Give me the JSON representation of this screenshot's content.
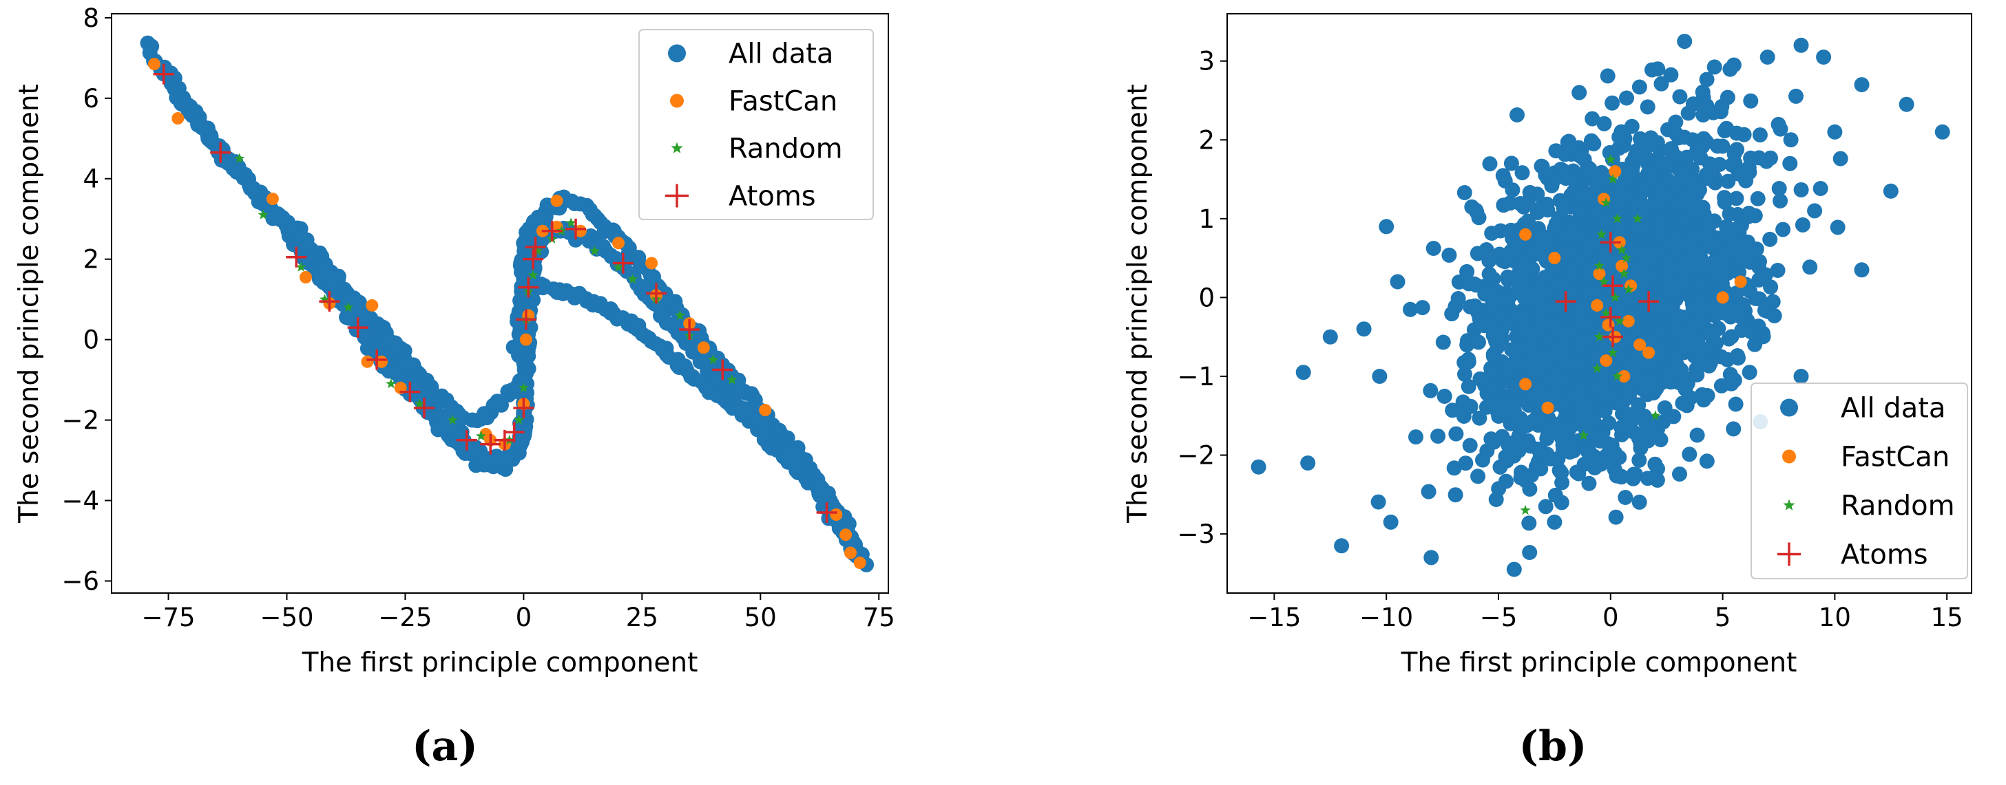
{
  "chart_data": [
    {
      "type": "scatter",
      "panel_label": "(a)",
      "xlabel": "The first principle component",
      "ylabel": "The second principle component",
      "xlim": [
        -87,
        77
      ],
      "ylim": [
        -6.3,
        8.1
      ],
      "xticks": [
        -75,
        -50,
        -25,
        0,
        25,
        50,
        75
      ],
      "yticks": [
        -6,
        -4,
        -2,
        0,
        2,
        4,
        6,
        8
      ],
      "xtick_labels": [
        "−75",
        "−50",
        "−25",
        "0",
        "25",
        "50",
        "75"
      ],
      "ytick_labels": [
        "−6",
        "−4",
        "−2",
        "0",
        "2",
        "4",
        "6",
        "8"
      ],
      "legend_position": "top-right",
      "series": [
        {
          "name": "All data",
          "marker": "circle",
          "color": "#1f77b4",
          "curves": [
            [
              [
                -80,
                7.35
              ],
              [
                -72,
                6.0
              ],
              [
                -62,
                4.35
              ],
              [
                -52,
                3.0
              ],
              [
                -42,
                1.4
              ],
              [
                -32,
                -0.2
              ],
              [
                -22,
                -1.55
              ],
              [
                -14,
                -2.6
              ],
              [
                -8,
                -3.1
              ],
              [
                -4,
                -3.2
              ],
              [
                -1,
                -2.8
              ],
              [
                0,
                -1.8
              ],
              [
                0.5,
                -0.5
              ],
              [
                1,
                1.0
              ],
              [
                2.5,
                2.5
              ],
              [
                5,
                3.35
              ],
              [
                10,
                3.5
              ],
              [
                15,
                3.1
              ],
              [
                22,
                2.3
              ],
              [
                30,
                1.1
              ],
              [
                40,
                -0.4
              ],
              [
                50,
                -1.7
              ],
              [
                60,
                -3.2
              ],
              [
                67,
                -4.5
              ],
              [
                72,
                -5.6
              ]
            ],
            [
              [
                -74,
                6.3
              ],
              [
                -65,
                4.8
              ],
              [
                -55,
                3.5
              ],
              [
                -45,
                2.2
              ],
              [
                -35,
                0.7
              ],
              [
                -25,
                -0.8
              ],
              [
                -15,
                -2.2
              ],
              [
                -9,
                -2.9
              ],
              [
                -4,
                -3.0
              ],
              [
                -1,
                -2.6
              ],
              [
                0.3,
                -1.5
              ],
              [
                1,
                0.2
              ],
              [
                2,
                1.7
              ],
              [
                4,
                2.6
              ],
              [
                8,
                2.75
              ],
              [
                14,
                2.5
              ],
              [
                22,
                1.7
              ],
              [
                32,
                0.2
              ],
              [
                42,
                -1.1
              ],
              [
                52,
                -2.6
              ],
              [
                62,
                -3.7
              ],
              [
                70,
                -5.3
              ]
            ],
            [
              [
                -48,
                2.8
              ],
              [
                -40,
                1.6
              ],
              [
                -32,
                0.5
              ],
              [
                -25,
                -0.4
              ],
              [
                -19,
                -1.3
              ],
              [
                -12,
                -2.0
              ],
              [
                -8,
                -1.9
              ],
              [
                -3,
                -1.3
              ],
              [
                0,
                -1.0
              ]
            ],
            [
              [
                1,
                1.5
              ],
              [
                3,
                1.35
              ],
              [
                6,
                1.25
              ],
              [
                10,
                1.15
              ],
              [
                15,
                0.9
              ],
              [
                20,
                0.6
              ],
              [
                25,
                0.2
              ],
              [
                30,
                -0.3
              ],
              [
                35,
                -0.8
              ],
              [
                42,
                -1.5
              ],
              [
                50,
                -2.1
              ],
              [
                57,
                -2.9
              ],
              [
                62,
                -3.6
              ],
              [
                68,
                -4.6
              ]
            ],
            [
              [
                -1,
                -0.4
              ],
              [
                -1,
                0.5
              ],
              [
                -0.5,
                1.4
              ],
              [
                0.5,
                2.3
              ],
              [
                2,
                3.0
              ]
            ]
          ],
          "n_points": 520
        },
        {
          "name": "FastCan",
          "marker": "circle",
          "color": "#ff7f0e",
          "points": [
            [
              -78,
              6.85
            ],
            [
              -73,
              5.5
            ],
            [
              -53,
              3.5
            ],
            [
              -46,
              1.55
            ],
            [
              -41,
              0.9
            ],
            [
              -32,
              0.85
            ],
            [
              -33,
              -0.55
            ],
            [
              -30,
              -0.55
            ],
            [
              -26,
              -1.2
            ],
            [
              -8,
              -2.35
            ],
            [
              -7,
              -2.5
            ],
            [
              -4,
              -2.6
            ],
            [
              0,
              -1.6
            ],
            [
              0.5,
              0.0
            ],
            [
              1,
              0.6
            ],
            [
              4,
              2.7
            ],
            [
              7,
              2.8
            ],
            [
              7,
              3.45
            ],
            [
              12,
              2.7
            ],
            [
              20,
              2.4
            ],
            [
              27,
              1.9
            ],
            [
              28,
              1.1
            ],
            [
              35,
              0.4
            ],
            [
              38,
              -0.2
            ],
            [
              51,
              -1.75
            ],
            [
              66,
              -4.35
            ],
            [
              68,
              -4.85
            ],
            [
              69,
              -5.3
            ],
            [
              71,
              -5.55
            ]
          ]
        },
        {
          "name": "Random",
          "marker": "star",
          "color": "#2ca02c",
          "points": [
            [
              -60,
              4.5
            ],
            [
              -55,
              3.1
            ],
            [
              -47,
              1.8
            ],
            [
              -42,
              1.0
            ],
            [
              -37,
              0.8
            ],
            [
              -28,
              -1.1
            ],
            [
              -22,
              -1.6
            ],
            [
              -15,
              -2.0
            ],
            [
              -9,
              -2.4
            ],
            [
              -3,
              -2.5
            ],
            [
              -1,
              -2.0
            ],
            [
              0,
              -1.2
            ],
            [
              0.5,
              0.5
            ],
            [
              1,
              1.2
            ],
            [
              2,
              1.6
            ],
            [
              3,
              2.2
            ],
            [
              6,
              2.5
            ],
            [
              8,
              2.7
            ],
            [
              10,
              2.9
            ],
            [
              15,
              2.2
            ],
            [
              20,
              1.8
            ],
            [
              23,
              1.5
            ],
            [
              28,
              1.0
            ],
            [
              33,
              0.6
            ],
            [
              35,
              0.1
            ],
            [
              40,
              -0.5
            ],
            [
              44,
              -1.0
            ]
          ]
        },
        {
          "name": "Atoms",
          "marker": "plus",
          "color": "#d62728",
          "points": [
            [
              -76,
              6.6
            ],
            [
              -64,
              4.65
            ],
            [
              -48,
              2.05
            ],
            [
              -41,
              0.95
            ],
            [
              -35,
              0.3
            ],
            [
              -31,
              -0.5
            ],
            [
              -24,
              -1.3
            ],
            [
              -21,
              -1.7
            ],
            [
              -12,
              -2.5
            ],
            [
              -7,
              -2.6
            ],
            [
              -4,
              -2.5
            ],
            [
              -2,
              -2.3
            ],
            [
              0,
              -1.7
            ],
            [
              0.5,
              0.5
            ],
            [
              1,
              1.3
            ],
            [
              2,
              2.0
            ],
            [
              2.5,
              2.3
            ],
            [
              6,
              2.7
            ],
            [
              11,
              2.75
            ],
            [
              21,
              1.9
            ],
            [
              28,
              1.15
            ],
            [
              35,
              0.25
            ],
            [
              42,
              -0.75
            ],
            [
              64,
              -4.3
            ]
          ]
        }
      ]
    },
    {
      "type": "scatter",
      "panel_label": "(b)",
      "xlabel": "The first principle component",
      "ylabel": "The second principle component",
      "xlim": [
        -17.1,
        16.1
      ],
      "ylim": [
        -3.75,
        3.6
      ],
      "xticks": [
        -15,
        -10,
        -5,
        0,
        5,
        10,
        15
      ],
      "yticks": [
        -3,
        -2,
        -1,
        0,
        1,
        2,
        3
      ],
      "xtick_labels": [
        "−15",
        "−10",
        "−5",
        "0",
        "5",
        "10",
        "15"
      ],
      "ytick_labels": [
        "−3",
        "−2",
        "−1",
        "0",
        "1",
        "2",
        "3"
      ],
      "legend_position": "bottom-right",
      "series": [
        {
          "name": "All data",
          "marker": "circle",
          "color": "#1f77b4",
          "cloud": {
            "center": [
              0,
              0
            ],
            "sd_x": 3.0,
            "sd_y": 1.0,
            "correlation": 0.35,
            "n_points": 2400
          },
          "outliers": [
            [
              -15.7,
              -2.15
            ],
            [
              -13.7,
              -0.95
            ],
            [
              -12,
              -3.15
            ],
            [
              -12.5,
              -0.5
            ],
            [
              -11,
              -0.4
            ],
            [
              -10,
              0.9
            ],
            [
              -9.5,
              0.2
            ],
            [
              -9.8,
              -2.85
            ],
            [
              -8,
              -3.3
            ],
            [
              -13.5,
              -2.1
            ],
            [
              -10.3,
              -1.0
            ],
            [
              5.5,
              2.95
            ],
            [
              7,
              3.05
            ],
            [
              8.5,
              3.2
            ],
            [
              9.5,
              3.05
            ],
            [
              11.2,
              2.7
            ],
            [
              13.2,
              2.45
            ],
            [
              14.8,
              2.1
            ],
            [
              12.5,
              1.35
            ],
            [
              11.2,
              0.35
            ],
            [
              10,
              2.1
            ],
            [
              8,
              1.7
            ],
            [
              9.1,
              1.1
            ],
            [
              3.3,
              3.25
            ],
            [
              -4.3,
              -3.45
            ],
            [
              -2.5,
              -2.85
            ],
            [
              8.5,
              -1.0
            ],
            [
              6.2,
              -0.95
            ],
            [
              -1.4,
              2.6
            ],
            [
              2.1,
              2.9
            ]
          ]
        },
        {
          "name": "FastCan",
          "marker": "circle",
          "color": "#ff7f0e",
          "points": [
            [
              -3.8,
              0.8
            ],
            [
              -2.5,
              0.5
            ],
            [
              0.2,
              1.6
            ],
            [
              -0.3,
              1.25
            ],
            [
              0.5,
              0.4
            ],
            [
              0.2,
              -0.5
            ],
            [
              0.8,
              -0.3
            ],
            [
              1.3,
              -0.6
            ],
            [
              1.7,
              -0.7
            ],
            [
              -0.5,
              0.3
            ],
            [
              0.4,
              0.7
            ],
            [
              -0.2,
              -0.8
            ],
            [
              0.6,
              -1.0
            ],
            [
              -3.8,
              -1.1
            ],
            [
              -2.8,
              -1.4
            ],
            [
              5.0,
              0.0
            ],
            [
              5.8,
              0.2
            ],
            [
              -0.6,
              -0.1
            ],
            [
              0.9,
              0.15
            ],
            [
              -0.1,
              -0.35
            ]
          ]
        },
        {
          "name": "Random",
          "marker": "star",
          "color": "#2ca02c",
          "points": [
            [
              0,
              1.75
            ],
            [
              0.1,
              1.5
            ],
            [
              -0.2,
              1.2
            ],
            [
              0.3,
              1.0
            ],
            [
              -0.4,
              0.8
            ],
            [
              0.5,
              0.6
            ],
            [
              -0.5,
              0.4
            ],
            [
              0.6,
              0.3
            ],
            [
              -0.3,
              0.2
            ],
            [
              0.2,
              0.0
            ],
            [
              -0.2,
              -0.2
            ],
            [
              0.4,
              -0.3
            ],
            [
              -0.5,
              -0.5
            ],
            [
              0.1,
              -0.7
            ],
            [
              1.2,
              1.0
            ],
            [
              0.8,
              0.1
            ],
            [
              -1.2,
              -1.75
            ],
            [
              2.0,
              -1.5
            ],
            [
              -3.8,
              -2.7
            ],
            [
              0.7,
              0.5
            ],
            [
              -0.6,
              -0.9
            ],
            [
              0.3,
              -1.0
            ]
          ]
        },
        {
          "name": "Atoms",
          "marker": "plus",
          "color": "#d62728",
          "points": [
            [
              0.0,
              0.7
            ],
            [
              0.1,
              0.15
            ],
            [
              0.0,
              -0.25
            ],
            [
              0.1,
              -0.5
            ],
            [
              1.7,
              -0.05
            ],
            [
              -2.0,
              -0.05
            ]
          ]
        }
      ]
    }
  ]
}
